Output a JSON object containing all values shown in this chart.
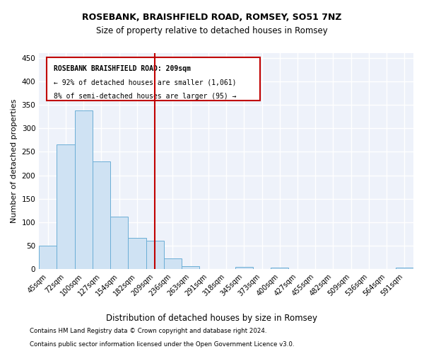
{
  "title1": "ROSEBANK, BRAISHFIELD ROAD, ROMSEY, SO51 7NZ",
  "title2": "Size of property relative to detached houses in Romsey",
  "xlabel": "Distribution of detached houses by size in Romsey",
  "ylabel": "Number of detached properties",
  "categories": [
    "45sqm",
    "72sqm",
    "100sqm",
    "127sqm",
    "154sqm",
    "182sqm",
    "209sqm",
    "236sqm",
    "263sqm",
    "291sqm",
    "318sqm",
    "345sqm",
    "373sqm",
    "400sqm",
    "427sqm",
    "455sqm",
    "482sqm",
    "509sqm",
    "536sqm",
    "564sqm",
    "591sqm"
  ],
  "values": [
    50,
    265,
    338,
    230,
    112,
    66,
    60,
    23,
    7,
    0,
    0,
    5,
    0,
    4,
    0,
    0,
    0,
    0,
    0,
    0,
    4
  ],
  "bar_color": "#cfe2f3",
  "bar_edge_color": "#6baed6",
  "vline_x_index": 6,
  "vline_color": "#c00000",
  "annotation_title": "ROSEBANK BRAISHFIELD ROAD: 209sqm",
  "annotation_line1": "← 92% of detached houses are smaller (1,061)",
  "annotation_line2": "8% of semi-detached houses are larger (95) →",
  "annotation_box_color": "#c00000",
  "ylim": [
    0,
    460
  ],
  "yticks": [
    0,
    50,
    100,
    150,
    200,
    250,
    300,
    350,
    400,
    450
  ],
  "footer1": "Contains HM Land Registry data © Crown copyright and database right 2024.",
  "footer2": "Contains public sector information licensed under the Open Government Licence v3.0.",
  "bg_color": "#eef2fa"
}
